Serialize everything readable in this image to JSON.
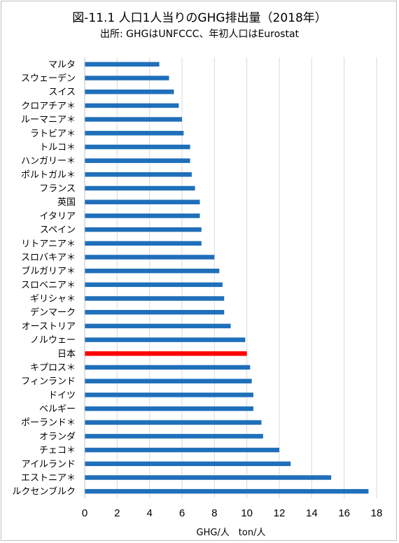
{
  "chart_data": {
    "type": "bar",
    "orientation": "horizontal",
    "title": "図-11.1 人口1人当りのGHG排出量（2018年）",
    "subtitle": "出所: GHGはUNFCCC、年初人口はEurostat",
    "xlabel": "GHG/人　ton/人",
    "xlim": [
      0,
      18
    ],
    "xticks": [
      0,
      2,
      4,
      6,
      8,
      10,
      12,
      14,
      16,
      18
    ],
    "grid": true,
    "legend": "none",
    "bar_color": "#1f6fba",
    "highlight_color": "#ff0000",
    "highlight_category": "日本",
    "categories": [
      "マルタ",
      "スウェーデン",
      "スイス",
      "クロアチア＊",
      "ルーマニア＊",
      "ラトビア＊",
      "トルコ＊",
      "ハンガリー＊",
      "ポルトガル＊",
      "フランス",
      "英国",
      "イタリア",
      "スペイン",
      "リトアニア＊",
      "スロバキア＊",
      "ブルガリア＊",
      "スロベニア＊",
      "ギリシャ＊",
      "デンマーク",
      "オーストリア",
      "ノルウェー",
      "日本",
      "キプロス＊",
      "フィンランド",
      "ドイツ",
      "ベルギー",
      "ポーランド＊",
      "オランダ",
      "チェコ＊",
      "アイルランド",
      "エストニア＊",
      "ルクセンブルク"
    ],
    "values": [
      4.6,
      5.2,
      5.5,
      5.8,
      6.0,
      6.1,
      6.5,
      6.5,
      6.6,
      6.8,
      7.1,
      7.1,
      7.2,
      7.2,
      8.0,
      8.3,
      8.5,
      8.6,
      8.6,
      9.0,
      9.9,
      10.0,
      10.2,
      10.3,
      10.4,
      10.4,
      10.9,
      11.0,
      12.0,
      12.7,
      15.2,
      17.5
    ]
  }
}
